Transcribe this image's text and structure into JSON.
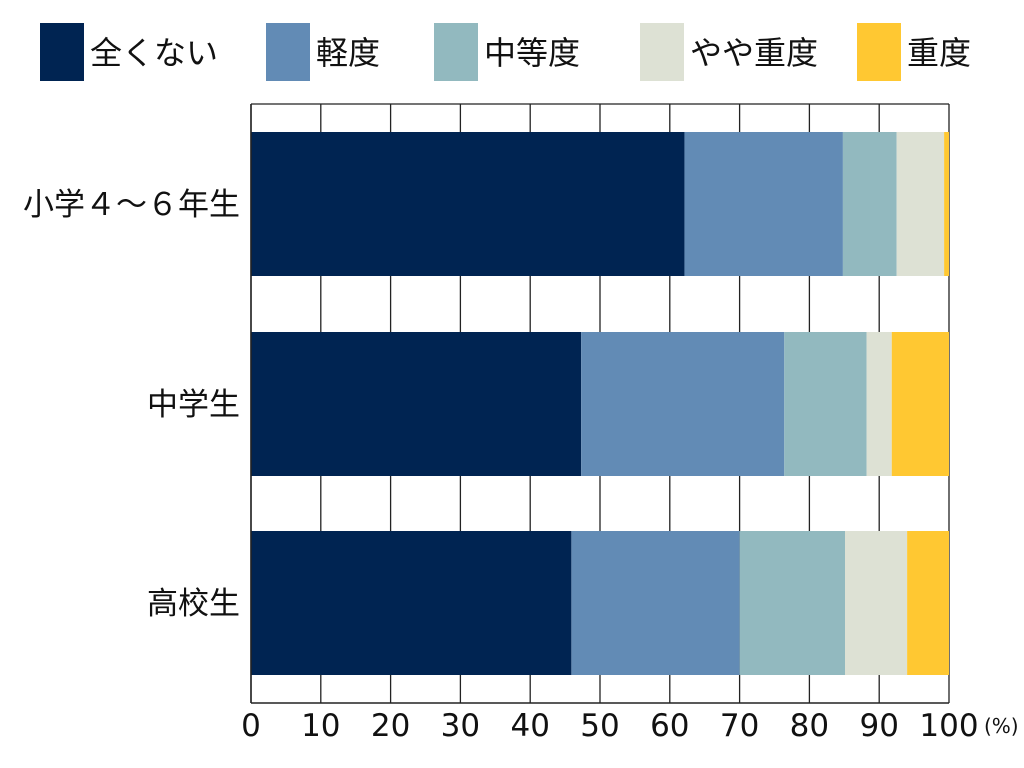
{
  "chart_data": {
    "type": "bar",
    "orientation": "horizontal",
    "stacked": true,
    "categories": [
      "小学４～６年生",
      "中学生",
      "高校生"
    ],
    "series": [
      {
        "name": "全くない",
        "color": "#002452",
        "values": [
          62.1,
          47.3,
          45.9
        ]
      },
      {
        "name": "軽度",
        "color": "#628bb5",
        "values": [
          22.7,
          29.1,
          24.1
        ]
      },
      {
        "name": "中等度",
        "color": "#92b9bf",
        "values": [
          7.7,
          11.8,
          15.1
        ]
      },
      {
        "name": "やや重度",
        "color": "#dde1d4",
        "values": [
          6.8,
          3.6,
          8.9
        ]
      },
      {
        "name": "重度",
        "color": "#ffc832",
        "values": [
          0.7,
          8.2,
          6.0
        ]
      }
    ],
    "xlim": [
      0,
      100
    ],
    "xticks": [
      "0",
      "10",
      "20",
      "30",
      "40",
      "50",
      "60",
      "70",
      "80",
      "90",
      "100"
    ],
    "xunit": "(%)",
    "grid": true,
    "legend_position": "top"
  }
}
